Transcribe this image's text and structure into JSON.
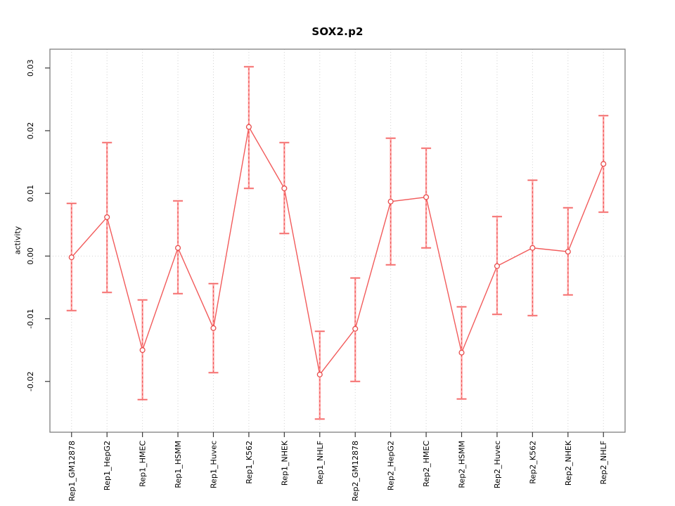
{
  "window": {
    "background": "#ffffff"
  },
  "chart_data": {
    "type": "line",
    "title": "SOX2.p2",
    "ylabel": "activity",
    "xlabel": "",
    "legend": "none",
    "grid": {
      "vertical_dotted_per_category": true,
      "horizontal_dotted_at_zero": true
    },
    "marker": "open-circle",
    "ylim": [
      -0.0281,
      0.033
    ],
    "yticks": [
      -0.02,
      -0.01,
      0.0,
      0.01,
      0.02,
      0.03
    ],
    "ytick_labels": [
      "-0.02",
      "-0.01",
      "0.00",
      "0.01",
      "0.02",
      "0.03"
    ],
    "categories": [
      "Rep1_GM12878",
      "Rep1_HepG2",
      "Rep1_HMEC",
      "Rep1_HSMM",
      "Rep1_Huvec",
      "Rep1_K562",
      "Rep1_NHEK",
      "Rep1_NHLF",
      "Rep2_GM12878",
      "Rep2_HepG2",
      "Rep2_HMEC",
      "Rep2_HSMM",
      "Rep2_Huvec",
      "Rep2_K562",
      "Rep2_NHEK",
      "Rep2_NHLF"
    ],
    "series": [
      {
        "name": "activity",
        "values": [
          -0.0002,
          0.0062,
          -0.015,
          0.0013,
          -0.0115,
          0.0206,
          0.0108,
          -0.0189,
          -0.0116,
          0.0087,
          0.0094,
          -0.0154,
          -0.0016,
          0.0013,
          0.0007,
          0.0147
        ],
        "lower": [
          -0.0087,
          -0.0058,
          -0.0229,
          -0.006,
          -0.0186,
          0.0108,
          0.0036,
          -0.026,
          -0.02,
          -0.0014,
          0.0013,
          -0.0228,
          -0.0093,
          -0.0095,
          -0.0062,
          0.007
        ],
        "upper": [
          0.0084,
          0.0181,
          -0.007,
          0.0088,
          -0.0044,
          0.0302,
          0.0181,
          -0.012,
          -0.0035,
          0.0188,
          0.0172,
          -0.0081,
          0.0063,
          0.0121,
          0.0077,
          0.0224
        ]
      }
    ],
    "colors": {
      "line": "#f25b5b",
      "marker": "#e84c4c",
      "error_bar": "#ffa3a3",
      "error_bar_dash": "#e84646",
      "grid": "#d2d2d2",
      "box": "#7f7f7f",
      "tick": "#383838",
      "text": "#000000",
      "background": "#ffffff"
    }
  }
}
